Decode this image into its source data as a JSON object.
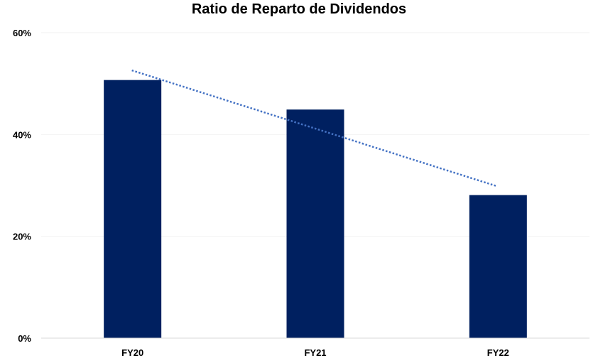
{
  "chart_data": {
    "type": "bar",
    "title": "Ratio de Reparto de Dividendos",
    "categories": [
      "FY20",
      "FY21",
      "FY22"
    ],
    "values": [
      50.7,
      44.9,
      28.1
    ],
    "value_unit": "%",
    "ylim": [
      0,
      60
    ],
    "yticks": [
      0,
      20,
      40,
      60
    ],
    "ytick_labels": [
      "0%",
      "20%",
      "40%",
      "60%"
    ],
    "xlabel": "",
    "ylabel": "",
    "grid": true,
    "legend": "none",
    "trendline": {
      "type": "linear",
      "style": "dotted",
      "start": 52.6,
      "end": 29.9
    },
    "colors": {
      "bar": "#002060",
      "trendline": "#4472C4",
      "gridline": "#f2f2f2",
      "axis": "#d9d9d9"
    }
  }
}
